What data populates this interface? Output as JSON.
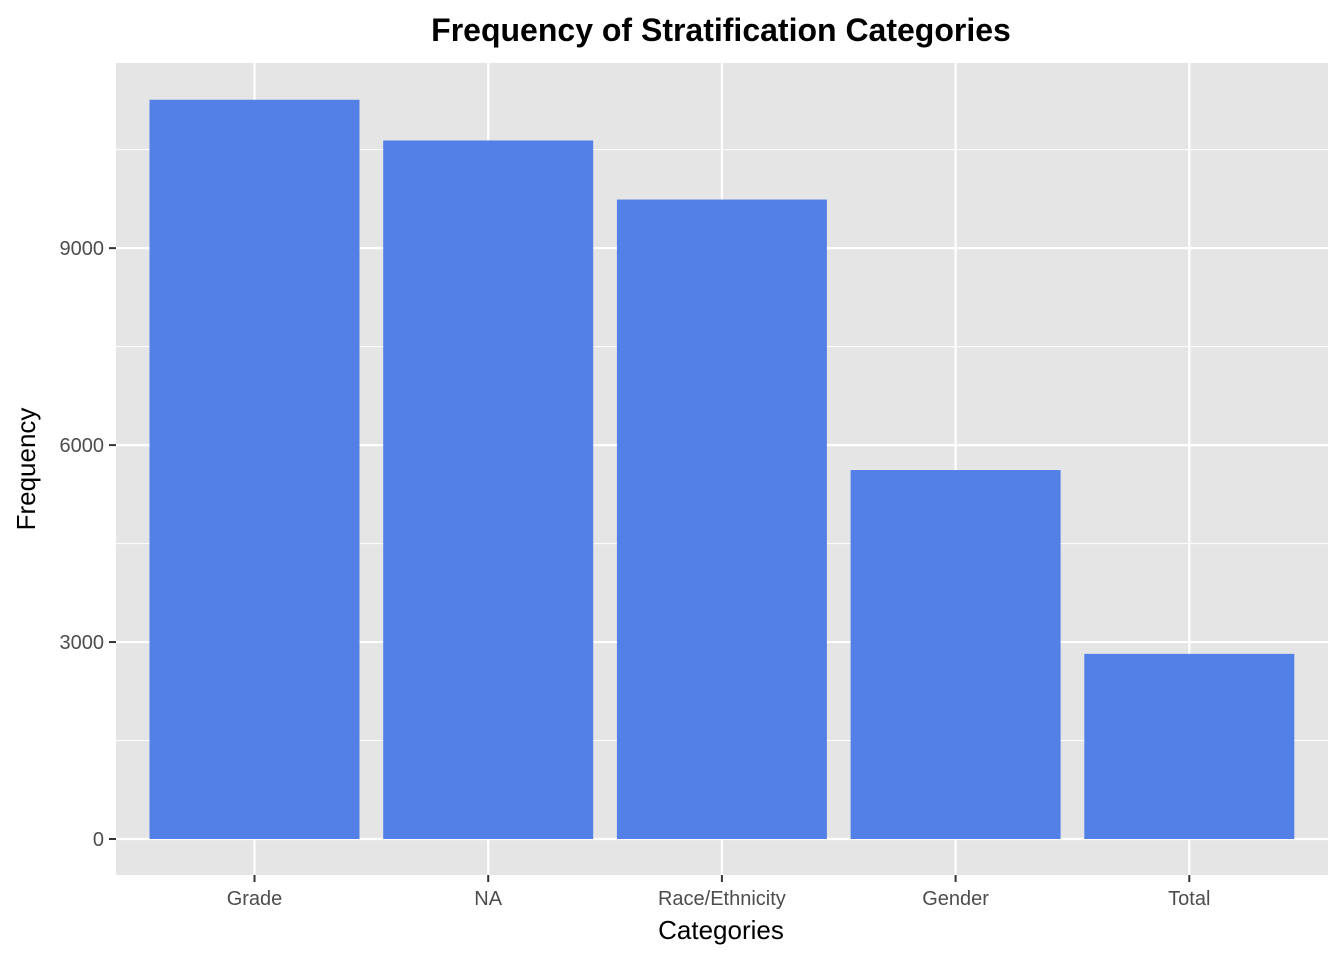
{
  "chart_data": {
    "type": "bar",
    "title": "Frequency of Stratification Categories",
    "xlabel": "Categories",
    "ylabel": "Frequency",
    "categories": [
      "Grade",
      "NA",
      "Race/Ethnicity",
      "Gender",
      "Total"
    ],
    "values": [
      11260,
      10640,
      9740,
      5620,
      2820
    ],
    "ylim": [
      0,
      11820
    ],
    "yticks": [
      0,
      3000,
      6000,
      9000
    ],
    "ytick_labels": [
      "0",
      "3000",
      "6000",
      "9000"
    ],
    "y_minor_ticks": [
      1500,
      4500,
      7500,
      10500
    ],
    "grid": true,
    "legend": "none",
    "colors": {
      "bar": "#5280e6",
      "panel_background": "#e5e5e5",
      "grid_line": "#ffffff",
      "tick_mark": "#333333"
    }
  }
}
